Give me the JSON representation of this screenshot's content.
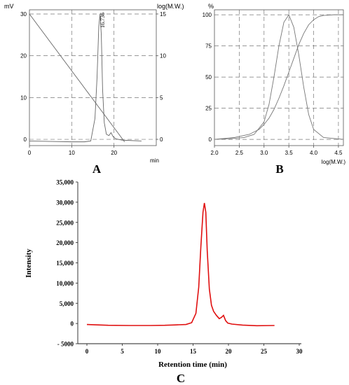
{
  "chart_data": [
    {
      "type": "line",
      "panel_label": "A",
      "left_unit": "mV",
      "right_axis_label": "log(M.W.)",
      "xlabel": "min",
      "x_ticks": [
        0,
        10,
        20
      ],
      "y_ticks": [
        0,
        10,
        20,
        30
      ],
      "right_ticks": [
        0,
        5,
        10,
        15
      ],
      "xlim": [
        0,
        30
      ],
      "ylim": [
        -1.5,
        31
      ],
      "right_ylim": [
        -0.75,
        15.5
      ],
      "grid": true,
      "peak_label": "16.736",
      "series": [
        {
          "x": [
            0,
            5,
            10,
            13,
            14.5,
            15.5,
            16.0,
            16.4,
            16.7,
            17.0,
            17.3,
            17.7,
            18.2,
            18.8,
            19.3,
            19.8,
            20.5,
            22,
            26.5
          ],
          "y": [
            -0.4,
            -0.5,
            -0.6,
            -0.6,
            -0.4,
            5,
            15,
            27,
            30,
            25,
            12,
            4,
            1.2,
            0.9,
            1.6,
            0.6,
            0.1,
            -0.2,
            -0.4
          ]
        },
        {
          "x": [
            0,
            22.5
          ],
          "y": [
            15,
            -0.3
          ]
        }
      ]
    },
    {
      "type": "line",
      "panel_label": "B",
      "top_unit": "%",
      "xlabel": "log(M.W.)",
      "x_ticks": [
        "2.0",
        "2.5",
        "3.0",
        "3.5",
        "4.0",
        "4.5"
      ],
      "y_ticks": [
        0,
        25,
        50,
        75,
        100
      ],
      "xlim": [
        2.0,
        4.6
      ],
      "ylim": [
        -5,
        104
      ],
      "grid": true,
      "series": [
        {
          "x": [
            2.0,
            2.3,
            2.6,
            2.8,
            3.0,
            3.1,
            3.2,
            3.3,
            3.4,
            3.5,
            3.6,
            3.7,
            3.8,
            3.9,
            4.0,
            4.2,
            4.6
          ],
          "y": [
            0,
            0.5,
            1.5,
            4,
            14,
            28,
            50,
            75,
            94,
            100,
            90,
            68,
            42,
            20,
            8,
            1.5,
            0
          ]
        },
        {
          "x": [
            2.0,
            2.4,
            2.7,
            2.9,
            3.0,
            3.1,
            3.2,
            3.3,
            3.4,
            3.5,
            3.6,
            3.7,
            3.8,
            3.9,
            4.0,
            4.1,
            4.2,
            4.4,
            4.6
          ],
          "y": [
            0,
            1.5,
            4,
            8,
            12,
            17,
            24,
            33,
            43,
            54,
            65,
            76,
            85,
            92,
            96,
            98.5,
            99.5,
            100,
            100
          ]
        }
      ]
    },
    {
      "type": "line",
      "panel_label": "C",
      "xlabel": "Retention time (min)",
      "ylabel": "Intensity",
      "x_ticks": [
        "0",
        "5",
        "10",
        "15",
        "20",
        "25",
        "30"
      ],
      "y_ticks": [
        "35,000",
        "30,000",
        "25,000",
        "20,000",
        "15,000",
        "10,000",
        "5,000",
        "0",
        "- 5000"
      ],
      "xlim": [
        -1,
        30
      ],
      "ylim": [
        -5000,
        35000
      ],
      "grid": false,
      "series": [
        {
          "color": "#e01010",
          "x": [
            0,
            3,
            6,
            9,
            11,
            12.5,
            14,
            14.8,
            15.4,
            15.8,
            16.1,
            16.4,
            16.6,
            16.8,
            17.0,
            17.3,
            17.6,
            17.9,
            18.3,
            18.7,
            19.0,
            19.3,
            19.6,
            19.9,
            20.5,
            22,
            24,
            26.5
          ],
          "y": [
            -250,
            -450,
            -500,
            -500,
            -450,
            -350,
            -250,
            200,
            2500,
            9000,
            19000,
            27500,
            29800,
            27500,
            18000,
            8500,
            4500,
            3000,
            2000,
            1200,
            1500,
            2000,
            700,
            100,
            -150,
            -400,
            -550,
            -500
          ]
        }
      ]
    }
  ]
}
